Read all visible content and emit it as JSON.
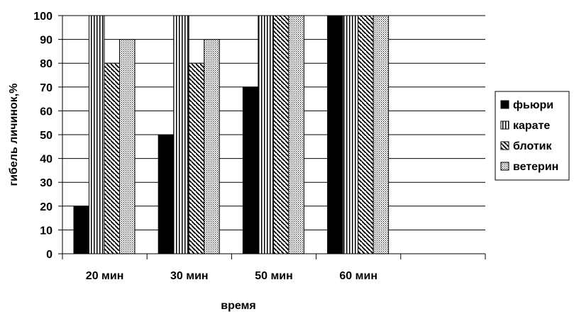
{
  "chart_data": {
    "type": "bar",
    "categories": [
      "20 мин",
      "30 мин",
      "50 мин",
      "60 мин",
      ""
    ],
    "series": [
      {
        "name": "фьюри",
        "pattern": "solid",
        "values": [
          20,
          50,
          70,
          100,
          null
        ]
      },
      {
        "name": "карате",
        "pattern": "vertical-lines",
        "values": [
          100,
          100,
          100,
          100,
          null
        ]
      },
      {
        "name": "блотик",
        "pattern": "diagonal-lines",
        "values": [
          80,
          80,
          100,
          100,
          null
        ]
      },
      {
        "name": "ветерин",
        "pattern": "dots",
        "values": [
          90,
          90,
          100,
          100,
          null
        ]
      }
    ],
    "xlabel": "время",
    "ylabel": "гибель личинок,%",
    "ylim": [
      0,
      100
    ],
    "yticks": [
      0,
      10,
      20,
      30,
      40,
      50,
      60,
      70,
      80,
      90,
      100
    ],
    "grid": true,
    "legend_position": "right",
    "colors": {
      "bar": "#000000",
      "fill": "#ffffff",
      "grid": "#000000"
    }
  }
}
